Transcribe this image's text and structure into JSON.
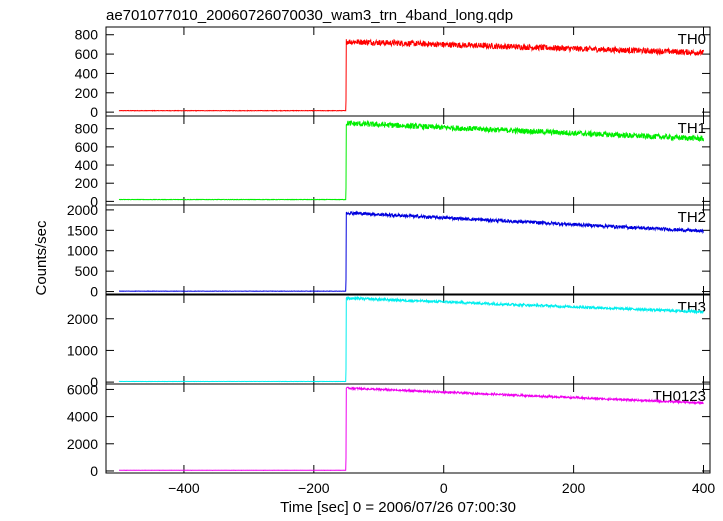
{
  "chart_data": {
    "type": "line",
    "title": "ae701077010_20060726070030_wam3_trn_4band_long.qdp",
    "xlabel": "Time [sec] 0 = 2006/07/26 07:00:30",
    "ylabel": "Counts/sec",
    "xlim": [
      -520,
      410
    ],
    "x_ticks": [
      "−400",
      "−200",
      "0",
      "200",
      "400"
    ],
    "x_tick_values": [
      -400,
      -200,
      0,
      200,
      400
    ],
    "x_range": [
      -500,
      400
    ],
    "rise_time": -150,
    "grid": false,
    "panels": [
      {
        "name": "TH0",
        "color": "#ff0000",
        "ylim": [
          -40,
          880
        ],
        "y_ticks": [
          0,
          200,
          400,
          600,
          800
        ],
        "y_tick_labels": [
          "0",
          "200",
          "400",
          "600",
          "800"
        ],
        "baseline": 15,
        "level_start": 730,
        "level_end": 615,
        "noise": 30
      },
      {
        "name": "TH1",
        "color": "#00ee00",
        "ylim": [
          -40,
          940
        ],
        "y_ticks": [
          0,
          200,
          400,
          600,
          800
        ],
        "y_tick_labels": [
          "0",
          "200",
          "400",
          "600",
          "800"
        ],
        "baseline": 20,
        "level_start": 860,
        "level_end": 690,
        "noise": 30
      },
      {
        "name": "TH2",
        "color": "#0000dd",
        "ylim": [
          -60,
          2120
        ],
        "y_ticks": [
          0,
          500,
          1000,
          1500,
          2000
        ],
        "y_tick_labels": [
          "0",
          "500",
          "1000",
          "1500",
          "2000"
        ],
        "baseline": 10,
        "level_start": 1930,
        "level_end": 1480,
        "noise": 40
      },
      {
        "name": "TH3",
        "color": "#00eeee",
        "ylim": [
          -60,
          2750
        ],
        "y_ticks": [
          0,
          1000,
          2000
        ],
        "y_tick_labels": [
          "0",
          "1000",
          "2000"
        ],
        "baseline": 20,
        "level_start": 2650,
        "level_end": 2220,
        "noise": 40
      },
      {
        "name": "TH0123",
        "color": "#ee00ee",
        "ylim": [
          -150,
          6400
        ],
        "y_ticks": [
          0,
          2000,
          4000,
          6000
        ],
        "y_tick_labels": [
          "0",
          "2000",
          "4000",
          "6000"
        ],
        "baseline": 50,
        "level_start": 6100,
        "level_end": 5000,
        "noise": 70
      }
    ]
  }
}
